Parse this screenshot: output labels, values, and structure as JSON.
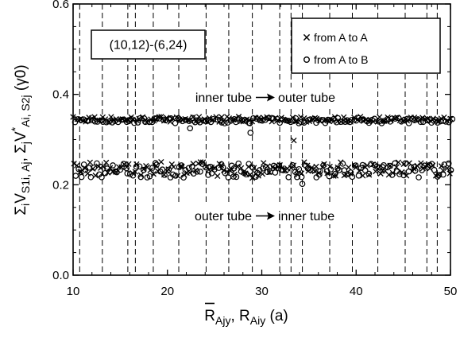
{
  "chart_data": {
    "type": "scatter",
    "title": "",
    "xlabel": "R̄_Ajy, R_Aiy (a)",
    "ylabel": "Σ_i V_S1i,Aj, Σ_j V*_Ai,S2j (γ0)",
    "xlabel_parts": {
      "bar_letter": "R",
      "part1_sub": "Ajy",
      "separator": ", ",
      "letter2": "R",
      "part2_sub": "Aiy",
      "unit": " (a)"
    },
    "ylabel_parts": {
      "a": "Σ",
      "a_sub": "i",
      "b": "V",
      "b_sub": "S1i, Aj",
      "c": ", Σ",
      "c_sub": "j",
      "d": "V",
      "d_sup": "*",
      "d_sub": "Ai, S2j",
      "unit": " (γ0)"
    },
    "xlim": [
      10,
      50
    ],
    "ylim": [
      0.0,
      0.6
    ],
    "x_ticks": [
      10,
      20,
      30,
      40,
      50
    ],
    "y_ticks": [
      0.0,
      0.2,
      0.4,
      0.6
    ],
    "y_tick_labels": [
      "0.0",
      "0.2",
      "0.4",
      "0.6"
    ],
    "structure_label": "(10,12)-(6,24)",
    "legend_position": "top-right",
    "annotations": {
      "upper": {
        "from": "inner tube",
        "to": "outer tube"
      },
      "lower": {
        "from": "outer tube",
        "to": "inner tube"
      }
    },
    "dashed_lines_x": [
      10.7,
      13.1,
      15.8,
      16.6,
      18.5,
      21.2,
      24.1,
      26.5,
      29.0,
      31.9,
      33.1,
      34.3,
      37.2,
      39.6,
      42.3,
      45.2,
      47.5,
      48.6
    ],
    "series": [
      {
        "name": "from A to A",
        "marker": "x",
        "values_upper_mean": 0.345,
        "values_lower_mean": 0.235
      },
      {
        "name": "from A to B",
        "marker": "o",
        "values_upper_mean": 0.342,
        "values_lower_mean": 0.232
      }
    ],
    "upper_outliers_x": [
      [
        28.8,
        0.315
      ],
      [
        33.4,
        0.298
      ],
      [
        22.4,
        0.325
      ]
    ],
    "lower_outliers_x": [
      [
        34.3,
        0.202
      ],
      [
        29.0,
        0.215
      ],
      [
        27.0,
        0.218
      ]
    ]
  }
}
